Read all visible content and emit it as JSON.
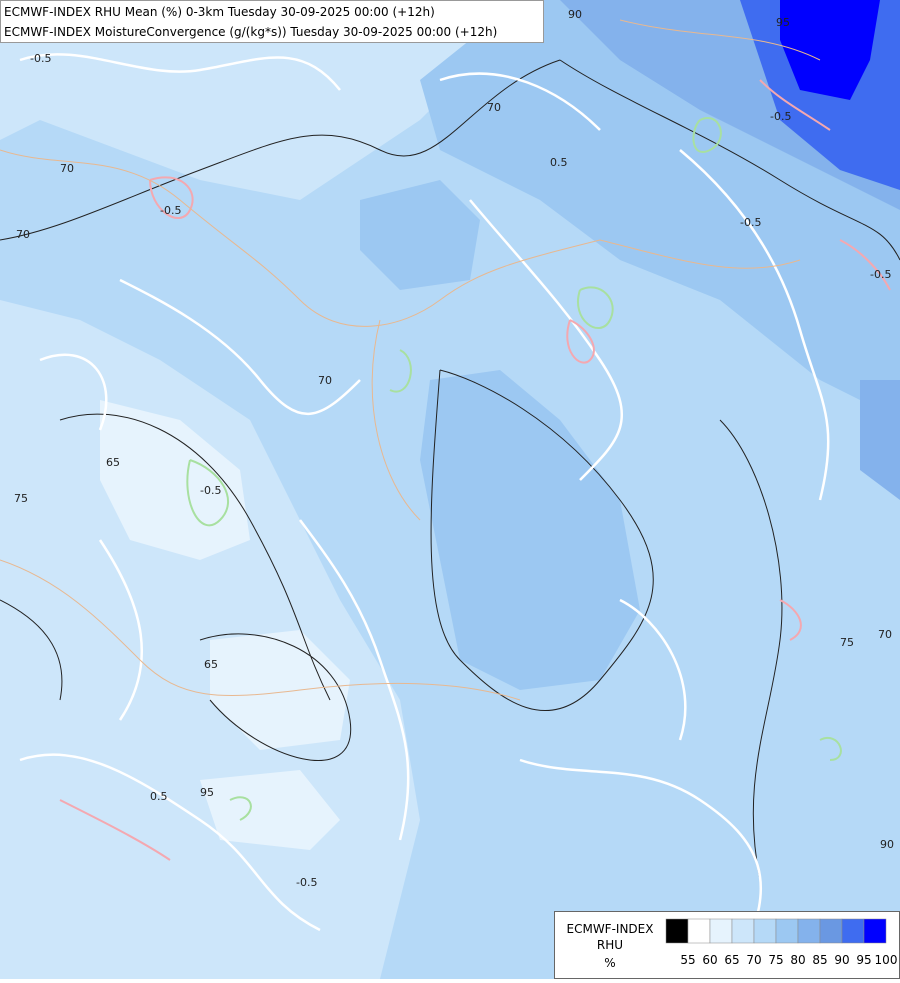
{
  "header": {
    "lines": [
      "ECMWF-INDEX RHU Mean (%) 0-3km Tuesday 30-09-2025 00:00 (+12h)",
      "ECMWF-INDEX MoistureConvergence (g/(kg*s)) Tuesday 30-09-2025 00:00 (+12h)"
    ]
  },
  "map": {
    "contour_labels": [
      "70",
      "70",
      "70",
      "65",
      "65",
      "75",
      "70",
      "90",
      "95",
      "-0.5",
      "-0.5",
      "-0.5",
      "-0.5",
      "0.5",
      "-0.5",
      "0.5",
      "-0.5",
      "70",
      "-0.5",
      "90",
      "95",
      "75"
    ]
  },
  "legend": {
    "title": "ECMWF-INDEX",
    "variable": "RHU",
    "unit": "%",
    "colors": [
      "#000000",
      "#ffffff",
      "#e6f3fd",
      "#cde6fa",
      "#b5d9f7",
      "#9cc8f2",
      "#84b2ec",
      "#6a98e2",
      "#3f6cf0",
      "#0000ff"
    ],
    "ticks": [
      55,
      60,
      65,
      70,
      75,
      80,
      85,
      90,
      95,
      100
    ]
  }
}
